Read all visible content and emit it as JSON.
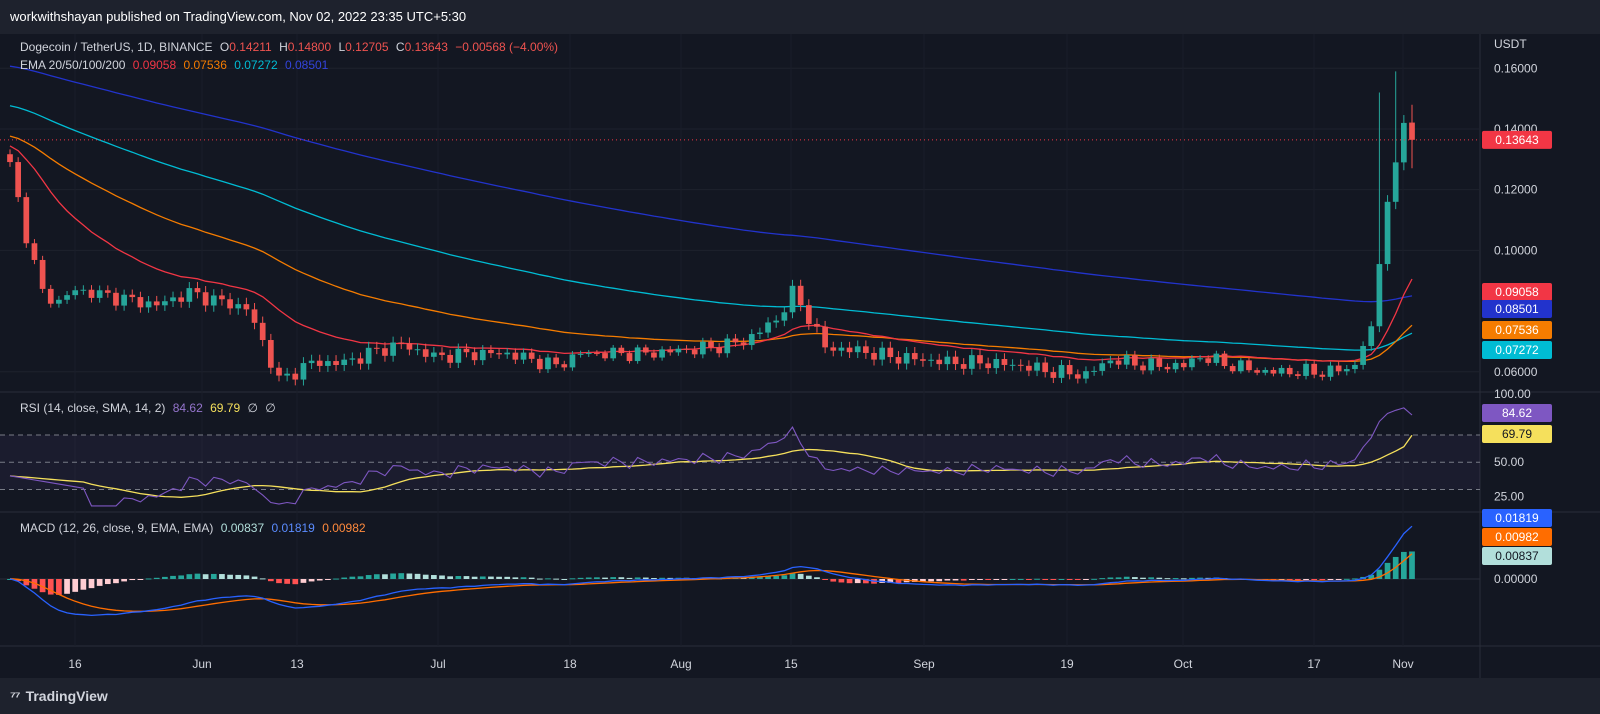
{
  "header": {
    "publisher_text": "workwithshayan published on TradingView.com, Nov 02, 2022 23:35 UTC+5:30"
  },
  "footer": {
    "brand": "TradingView"
  },
  "colors": {
    "background": "#131722",
    "up": "#26a69a",
    "down": "#ef5350",
    "ema20": "#f23645",
    "ema50": "#f57c00",
    "ema100": "#00bcd4",
    "ema200": "#2233cc",
    "rsi": "#7e57c2",
    "rsi_sma": "#f5e05c",
    "macd": "#2962ff",
    "signal": "#ff6d00"
  },
  "price_legend": {
    "symbol": "Dogecoin / TetherUS, 1D, BINANCE",
    "o_label": "O",
    "o_value": "0.14211",
    "h_label": "H",
    "h_value": "0.14800",
    "l_label": "L",
    "l_value": "0.12705",
    "c_label": "C",
    "c_value": "0.13643",
    "change": "−0.00568 (−4.00%)"
  },
  "ema_legend": {
    "label": "EMA 20/50/100/200",
    "v20": "0.09058",
    "v50": "0.07536",
    "v100": "0.07272",
    "v200": "0.08501"
  },
  "rsi_legend": {
    "label": "RSI (14, close, SMA, 14, 2)",
    "rsi": "84.62",
    "sma": "69.79",
    "na1": "∅",
    "na2": "∅"
  },
  "macd_legend": {
    "label": "MACD (12, 26, close, 9, EMA, EMA)",
    "hist": "0.00837",
    "macd": "0.01819",
    "signal": "0.00982"
  },
  "chart_data": {
    "type": "candlestick",
    "currency_label": "USDT",
    "x_ticks": [
      "16",
      "Jun",
      "13",
      "Jul",
      "18",
      "Aug",
      "15",
      "Sep",
      "19",
      "Oct",
      "17",
      "Nov"
    ],
    "price_axis": {
      "ticks": [
        "0.16000",
        "0.14000",
        "0.12000",
        "0.10000",
        "0.06000"
      ],
      "range": [
        0.054,
        0.168
      ]
    },
    "price_badges": [
      {
        "name": "last",
        "value": "0.13643",
        "color": "#f23645"
      },
      {
        "name": "ema20",
        "value": "0.09058",
        "color": "#f23645"
      },
      {
        "name": "ema200",
        "value": "0.08501",
        "color": "#2233cc"
      },
      {
        "name": "ema50",
        "value": "0.07536",
        "color": "#f57c00"
      },
      {
        "name": "ema100",
        "value": "0.07272",
        "color": "#00bcd4"
      }
    ],
    "rsi_axis": {
      "ticks": [
        "100.00",
        "50.00",
        "25.00"
      ],
      "levels": [
        70,
        50,
        30
      ]
    },
    "rsi_badges": [
      {
        "name": "rsi",
        "value": "84.62",
        "color": "#7e57c2"
      },
      {
        "name": "rsi_sma",
        "value": "69.79",
        "color": "#f5e05c"
      }
    ],
    "macd_axis": {
      "ticks": [
        "0.00000"
      ]
    },
    "macd_badges": [
      {
        "name": "macd",
        "value": "0.01819",
        "color": "#2962ff"
      },
      {
        "name": "signal",
        "value": "0.00982",
        "color": "#ff6d00"
      },
      {
        "name": "hist",
        "value": "0.00837",
        "color": "#b2dfdb"
      }
    ],
    "last_close": 0.13643
  }
}
